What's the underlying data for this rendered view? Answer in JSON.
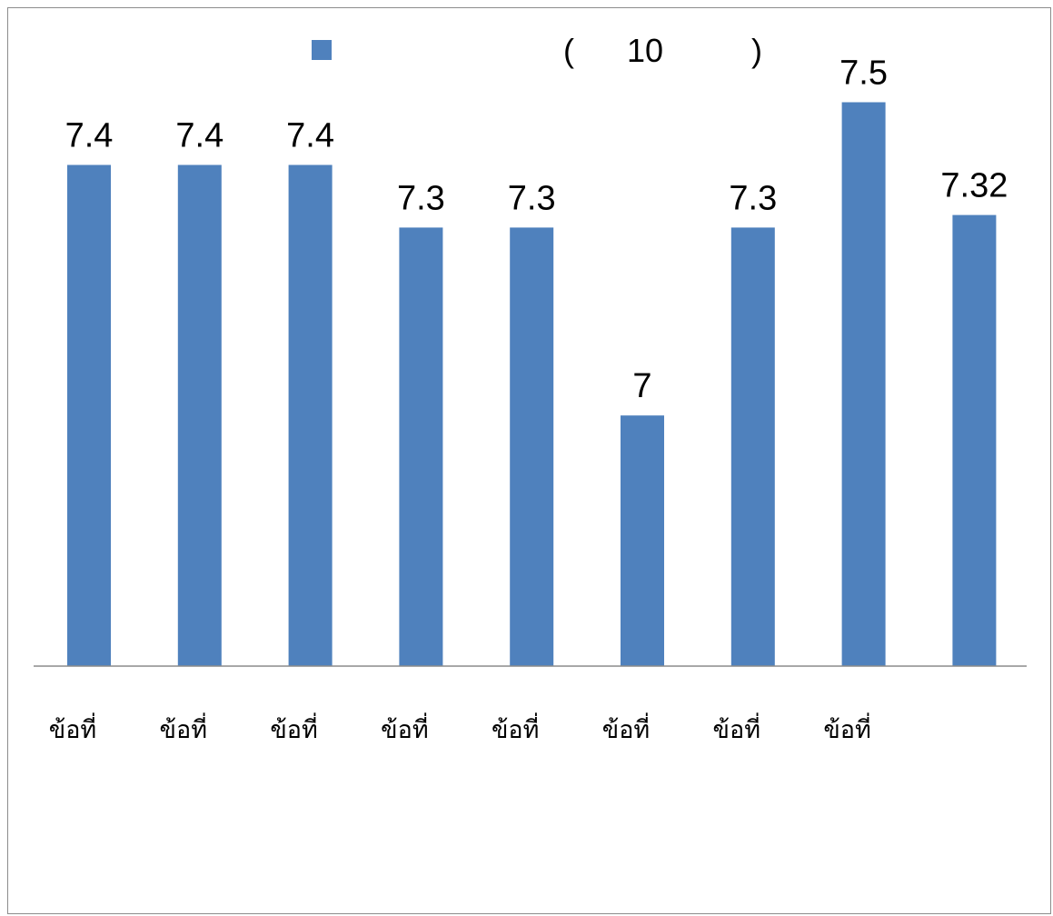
{
  "legend": {
    "swatch_color": "#4F81BD",
    "open_paren": "(",
    "number": "10",
    "close_paren": ")"
  },
  "colors": {
    "bar": "#4F81BD",
    "axis": "#8c8c8c"
  },
  "chart_data": {
    "type": "bar",
    "categories": [
      "ข้อที่",
      "ข้อที่",
      "ข้อที่",
      "ข้อที่",
      "ข้อที่",
      "ข้อที่",
      "ข้อที่",
      "ข้อที่",
      ""
    ],
    "values": [
      7.4,
      7.4,
      7.4,
      7.3,
      7.3,
      7.0,
      7.3,
      7.5,
      7.32
    ],
    "data_labels": [
      "7.4",
      "7.4",
      "7.4",
      "7.3",
      "7.3",
      "7",
      "7.3",
      "7.5",
      "7.32"
    ],
    "ylim": [
      6.6,
      7.6
    ],
    "grid": false,
    "legend_position": "top"
  }
}
